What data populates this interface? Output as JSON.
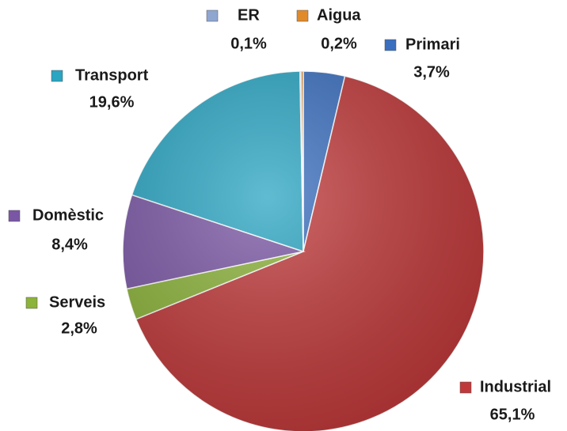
{
  "chart_data": {
    "type": "pie",
    "categories": [
      "Primari",
      "Industrial",
      "Serveis",
      "Domèstic",
      "Transport",
      "ER",
      "Aigua"
    ],
    "values": [
      3.7,
      65.1,
      2.8,
      8.4,
      19.6,
      0.1,
      0.2
    ],
    "value_labels": [
      "3,7%",
      "65,1%",
      "2,8%",
      "8,4%",
      "19,6%",
      "0,1%",
      "0,2%"
    ],
    "colors": [
      "#3a6fbf",
      "#c0393a",
      "#8cb33a",
      "#7a57a5",
      "#2aa5c2",
      "#8ea6d0",
      "#e08a2a"
    ]
  }
}
